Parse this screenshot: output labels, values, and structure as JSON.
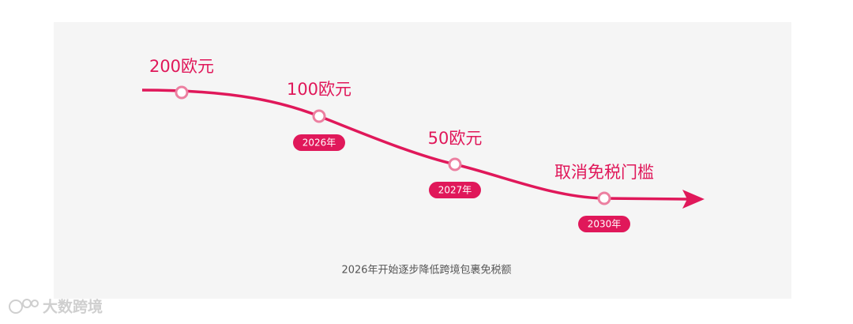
{
  "nodes": [
    {
      "label": "200欧元"
    },
    {
      "label": "100欧元",
      "year": "2026年"
    },
    {
      "label": "50欧元",
      "year": "2027年"
    },
    {
      "label": "取消免税门槛",
      "year": "2030年"
    }
  ],
  "caption": "2026年开始逐步降低跨境包裹免税额",
  "watermark": "大数跨境"
}
